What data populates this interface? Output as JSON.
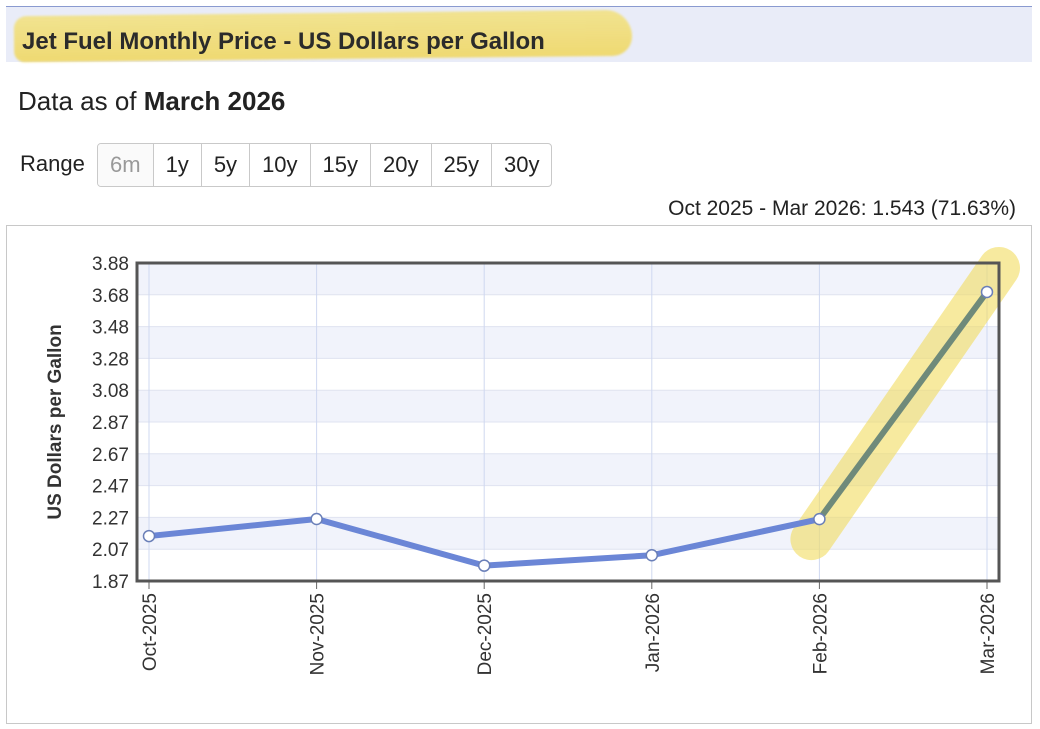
{
  "header": {
    "title": "Jet Fuel Monthly Price - US Dollars per Gallon"
  },
  "asof": {
    "prefix": "Data as of ",
    "date": "March 2026"
  },
  "range": {
    "label": "Range",
    "options": [
      "6m",
      "1y",
      "5y",
      "10y",
      "15y",
      "20y",
      "25y",
      "30y"
    ],
    "selected": "6m"
  },
  "change_text": "Oct 2025 - Mar 2026: 1.543 (71.63%)",
  "colors": {
    "line": "#6b86d6",
    "highlight_line": "#6f8a7a",
    "marker_fill": "#ffffff",
    "highlight": "#f2dd60"
  },
  "chart_data": {
    "type": "line",
    "title": "",
    "ylabel": "US Dollars per Gallon",
    "xlabel": "",
    "categories": [
      "Oct-2025",
      "Nov-2025",
      "Dec-2025",
      "Jan-2026",
      "Feb-2026",
      "Mar-2026"
    ],
    "series": [
      {
        "values": [
          2.154,
          2.262,
          1.967,
          2.033,
          2.261,
          3.697
        ]
      }
    ],
    "yticks": [
      "3.88",
      "3.68",
      "3.48",
      "3.28",
      "3.08",
      "2.87",
      "2.67",
      "2.47",
      "2.27",
      "2.07",
      "1.87"
    ],
    "ylim": [
      1.87,
      3.88
    ],
    "grid": true,
    "legend": "none"
  }
}
